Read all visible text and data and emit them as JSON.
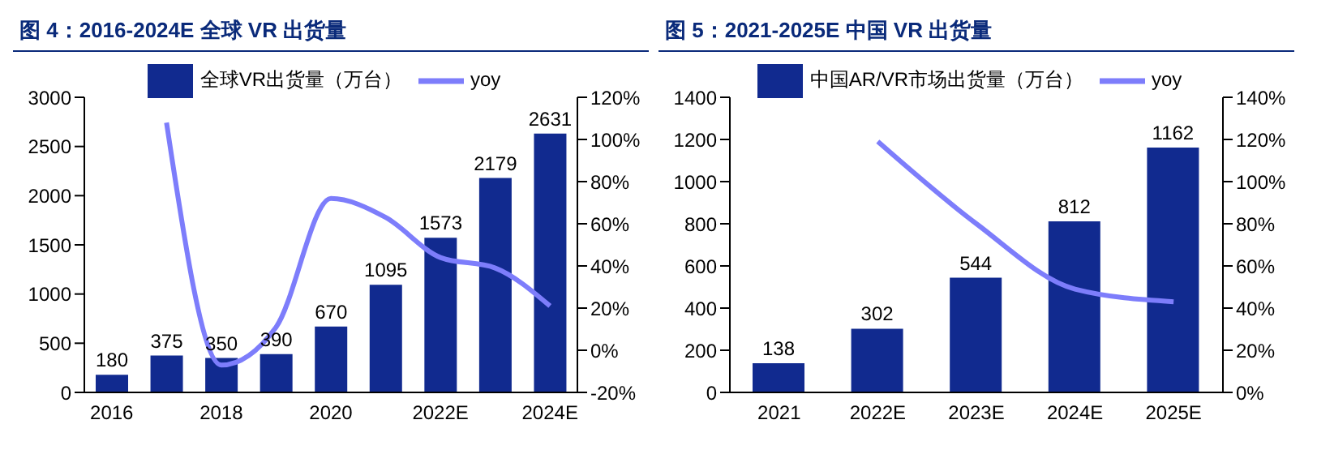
{
  "chart_data": [
    {
      "type": "bar",
      "title": "图 4：2016-2024E 全球 VR 出货量",
      "categories": [
        "2016",
        null,
        "2018",
        null,
        "2020",
        null,
        "2022E",
        null,
        "2024E"
      ],
      "series": [
        {
          "name": "全球VR出货量（万台）",
          "color": "#112a8f",
          "values": [
            180,
            375,
            350,
            390,
            670,
            1095,
            1573,
            2179,
            2631
          ],
          "value_labels": [
            "180",
            "375",
            "350",
            "390",
            "670",
            "1095",
            "1573",
            "2179",
            "2631"
          ]
        },
        {
          "name": "yoy",
          "type": "line",
          "axis": "y2",
          "color": "#7d7dfb",
          "values": [
            null,
            108,
            -7,
            11,
            72,
            63,
            44,
            39,
            21
          ]
        }
      ],
      "ylim": [
        0,
        3000
      ],
      "yticks": [
        0,
        500,
        1000,
        1500,
        2000,
        2500,
        3000
      ],
      "y2lim": [
        -20,
        120
      ],
      "y2ticks": [
        {
          "value": -20,
          "label": "-20%"
        },
        {
          "value": 0,
          "label": "0%"
        },
        {
          "value": 20,
          "label": "20%"
        },
        {
          "value": 40,
          "label": "40%"
        },
        {
          "value": 60,
          "label": "60%"
        },
        {
          "value": 80,
          "label": "80%"
        },
        {
          "value": 100,
          "label": "100%"
        },
        {
          "value": 120,
          "label": "120%"
        }
      ],
      "legend": "top",
      "grid": false,
      "marker": "none"
    },
    {
      "type": "bar",
      "title": "图 5：2021-2025E 中国 VR 出货量",
      "categories": [
        "2021",
        "2022E",
        "2023E",
        "2024E",
        "2025E"
      ],
      "series": [
        {
          "name": "中国AR/VR市场出货量（万台）",
          "color": "#112a8f",
          "values": [
            138,
            302,
            544,
            812,
            1162
          ],
          "value_labels": [
            "138",
            "302",
            "544",
            "812",
            "1162"
          ]
        },
        {
          "name": "yoy",
          "type": "line",
          "axis": "y2",
          "color": "#7d7dfb",
          "values": [
            null,
            119,
            80,
            49,
            43
          ]
        }
      ],
      "ylim": [
        0,
        1400
      ],
      "yticks": [
        0,
        200,
        400,
        600,
        800,
        1000,
        1200,
        1400
      ],
      "y2lim": [
        0,
        140
      ],
      "y2ticks": [
        {
          "value": 0,
          "label": "0%"
        },
        {
          "value": 20,
          "label": "20%"
        },
        {
          "value": 40,
          "label": "40%"
        },
        {
          "value": 60,
          "label": "60%"
        },
        {
          "value": 80,
          "label": "80%"
        },
        {
          "value": 100,
          "label": "100%"
        },
        {
          "value": 120,
          "label": "120%"
        },
        {
          "value": 140,
          "label": "140%"
        }
      ],
      "legend": "top",
      "grid": false,
      "marker": "none"
    }
  ]
}
